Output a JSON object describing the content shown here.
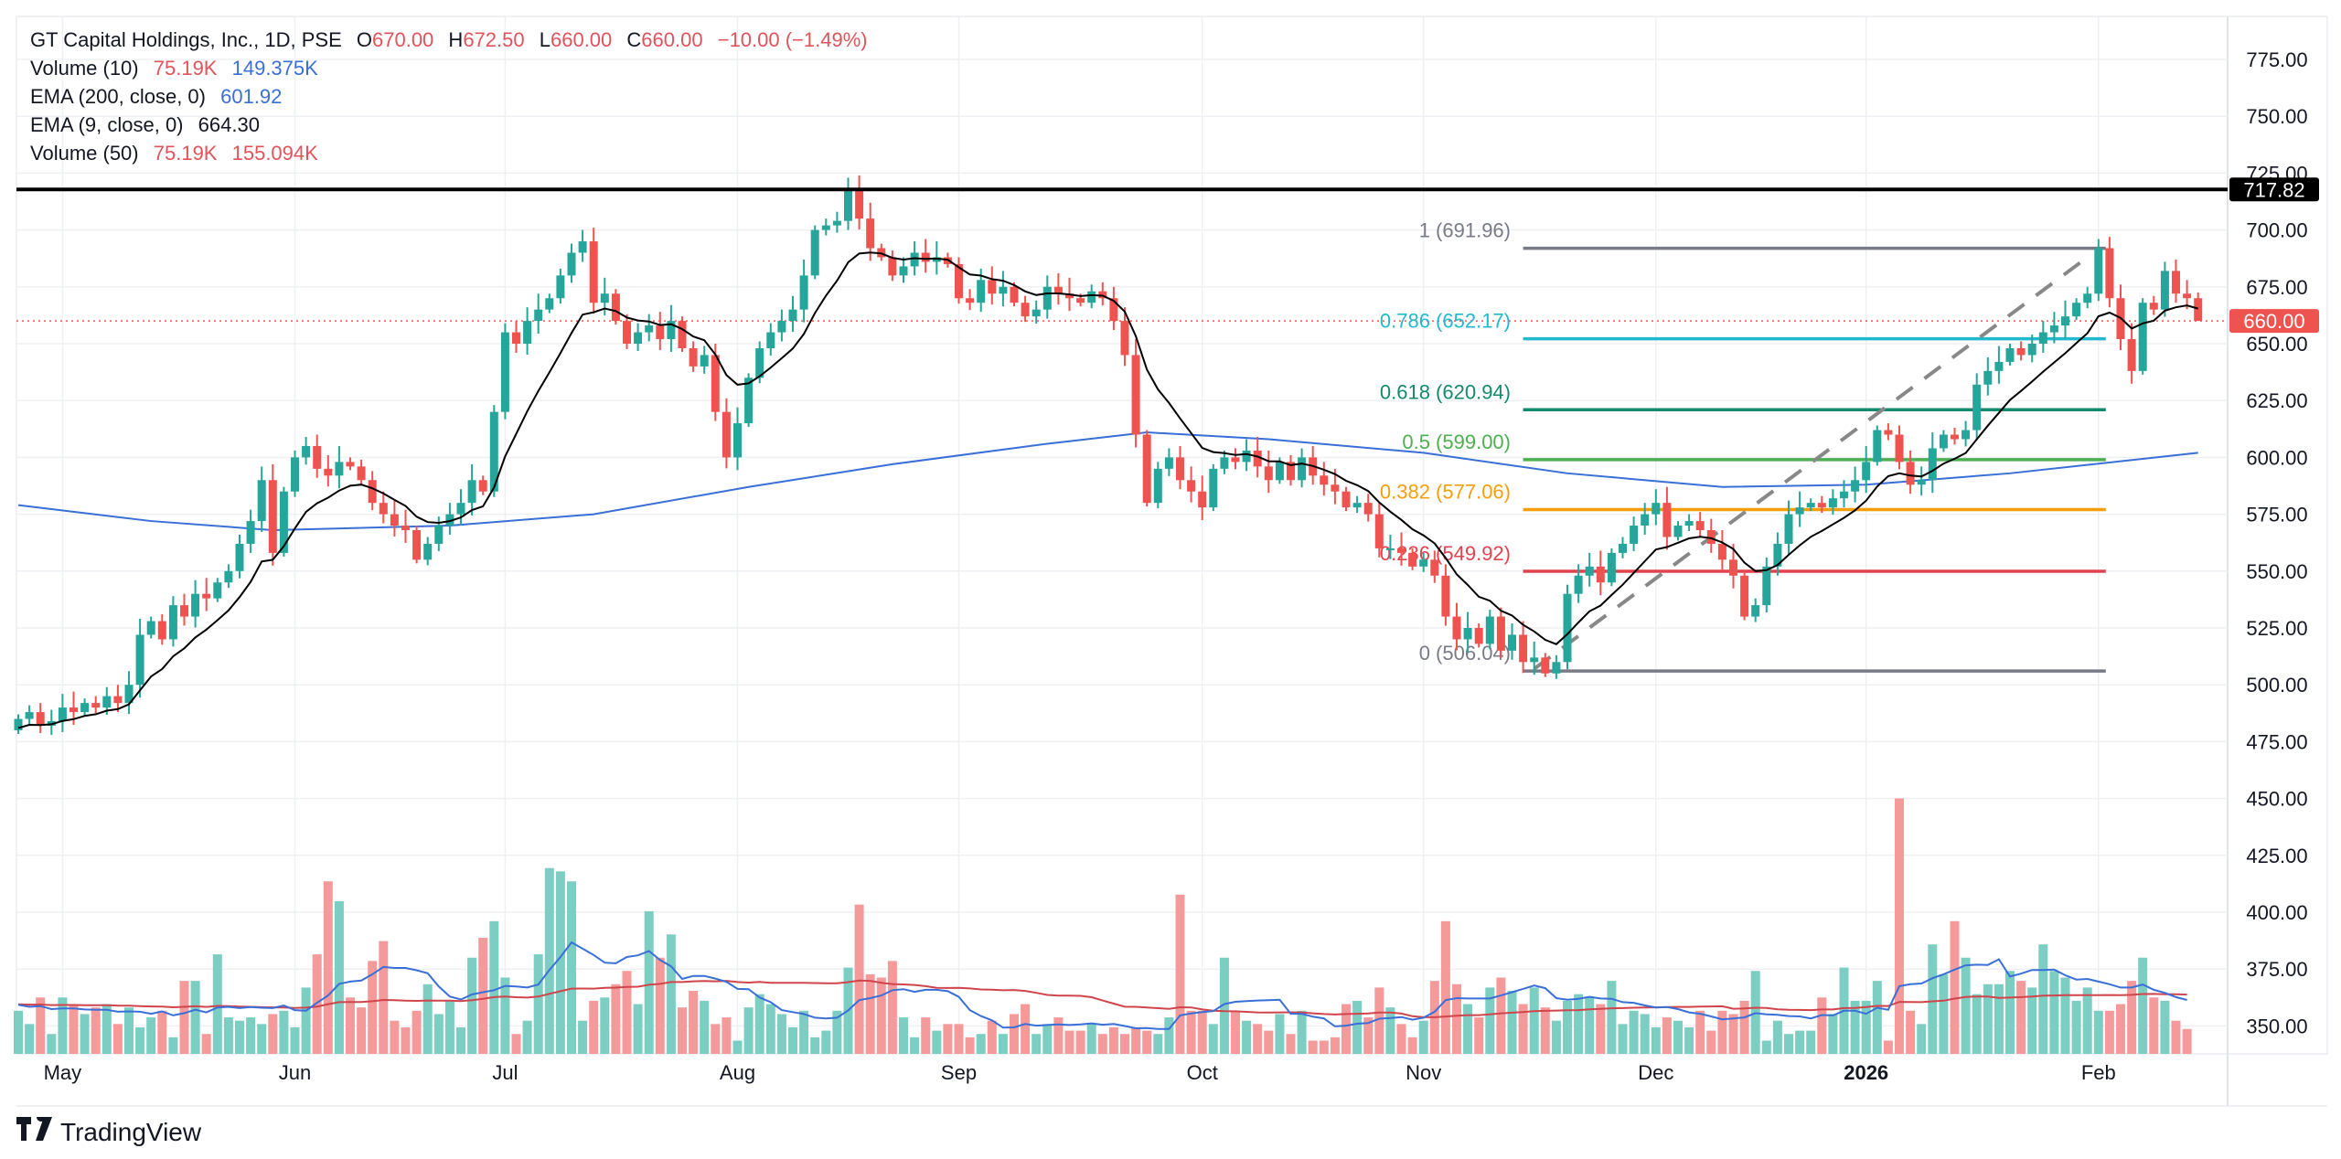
{
  "legend": {
    "title": "GT Capital Holdings, Inc., 1D, PSE",
    "o_label": "O",
    "o": "670.00",
    "h_label": "H",
    "h": "672.50",
    "l_label": "L",
    "l": "660.00",
    "c_label": "C",
    "c": "660.00",
    "change": "−10.00 (−1.49%)",
    "vol10_label": "Volume (10)",
    "vol10_a": "75.19K",
    "vol10_b": "149.375K",
    "ema200_label": "EMA (200, close, 0)",
    "ema200": "601.92",
    "ema9_label": "EMA (9, close, 0)",
    "ema9": "664.30",
    "vol50_label": "Volume (50)",
    "vol50_a": "75.19K",
    "vol50_b": "155.094K"
  },
  "branding": {
    "name": "TradingView",
    "mark": "17"
  },
  "colors": {
    "up": "#26a69a",
    "down": "#ef5350",
    "vol_up": "#7ccdc2",
    "vol_down": "#f59a9a",
    "ema200": "#3a6fd8",
    "ema9": "#000000",
    "vol_ma10": "#3a6fd8",
    "vol_ma50": "#d0454c",
    "resistance": "#000000",
    "last_price": "#ef5350"
  },
  "chart_data": {
    "type": "candlestick",
    "title": "GT Capital Holdings, Inc., 1D, PSE",
    "ylim": [
      340,
      790
    ],
    "y_ticks": [
      350,
      375,
      400,
      425,
      450,
      475,
      500,
      525,
      550,
      575,
      600,
      625,
      650,
      675,
      700,
      725,
      750,
      775
    ],
    "y_tick_labels": [
      "350.00",
      "375.00",
      "400.00",
      "425.00",
      "450.00",
      "475.00",
      "500.00",
      "525.00",
      "550.00",
      "575.00",
      "600.00",
      "625.00",
      "650.00",
      "675.00",
      "700.00",
      "725.00",
      "750.00",
      "775.00"
    ],
    "x_labels": [
      {
        "label": "May",
        "bar": 4
      },
      {
        "label": "Jun",
        "bar": 25
      },
      {
        "label": "Jul",
        "bar": 44
      },
      {
        "label": "Aug",
        "bar": 65
      },
      {
        "label": "Sep",
        "bar": 85
      },
      {
        "label": "Oct",
        "bar": 107
      },
      {
        "label": "Nov",
        "bar": 127
      },
      {
        "label": "Dec",
        "bar": 148
      },
      {
        "label": "2026",
        "bar": 167,
        "bold": true
      },
      {
        "label": "Feb",
        "bar": 188
      }
    ],
    "closes": [
      485,
      488,
      482,
      484,
      490,
      488,
      492,
      490,
      495,
      492,
      500,
      522,
      528,
      520,
      535,
      530,
      540,
      538,
      545,
      550,
      562,
      572,
      590,
      558,
      585,
      600,
      605,
      595,
      592,
      598,
      596,
      590,
      580,
      575,
      570,
      568,
      555,
      562,
      570,
      575,
      580,
      590,
      585,
      620,
      655,
      650,
      660,
      665,
      670,
      680,
      690,
      695,
      668,
      672,
      660,
      650,
      655,
      658,
      652,
      660,
      648,
      640,
      645,
      620,
      600,
      615,
      635,
      648,
      655,
      660,
      665,
      680,
      700,
      702,
      704,
      718,
      705,
      692,
      688,
      680,
      684,
      690,
      686,
      688,
      685,
      670,
      668,
      678,
      672,
      675,
      668,
      662,
      665,
      675,
      672,
      670,
      668,
      673,
      670,
      660,
      645,
      610,
      580,
      595,
      600,
      590,
      585,
      578,
      595,
      600,
      598,
      603,
      596,
      590,
      598,
      590,
      600,
      592,
      588,
      585,
      578,
      580,
      575,
      560,
      560,
      558,
      552,
      555,
      548,
      530,
      520,
      525,
      518,
      530,
      515,
      522,
      510,
      512,
      505,
      510,
      540,
      548,
      552,
      545,
      558,
      562,
      570,
      575,
      580,
      565,
      570,
      572,
      568,
      562,
      555,
      548,
      530,
      535,
      552,
      562,
      575,
      578,
      580,
      578,
      582,
      585,
      590,
      598,
      612,
      610,
      598,
      588,
      590,
      604,
      610,
      608,
      612,
      632,
      638,
      642,
      648,
      645,
      650,
      655,
      658,
      662,
      668,
      672,
      692,
      670,
      652,
      638,
      668,
      665,
      682,
      672,
      670,
      660
    ],
    "first_open": 480,
    "last_bar": {
      "open": 670,
      "high": 672.5,
      "low": 660,
      "close": 660
    },
    "volumes_k": [
      130,
      90,
      170,
      60,
      170,
      150,
      120,
      140,
      150,
      90,
      140,
      80,
      110,
      130,
      50,
      220,
      220,
      60,
      300,
      110,
      100,
      110,
      90,
      120,
      130,
      80,
      200,
      300,
      520,
      460,
      170,
      140,
      280,
      340,
      100,
      80,
      130,
      210,
      120,
      160,
      80,
      290,
      350,
      400,
      230,
      60,
      100,
      300,
      560,
      550,
      520,
      100,
      160,
      170,
      210,
      250,
      150,
      430,
      290,
      360,
      140,
      190,
      160,
      90,
      110,
      40,
      140,
      180,
      150,
      120,
      80,
      130,
      50,
      70,
      130,
      260,
      450,
      240,
      230,
      280,
      110,
      50,
      110,
      70,
      90,
      90,
      50,
      60,
      100,
      60,
      120,
      150,
      60,
      90,
      110,
      70,
      70,
      90,
      60,
      80,
      60,
      80,
      70,
      60,
      110,
      480,
      130,
      130,
      90,
      290,
      130,
      100,
      90,
      70,
      120,
      60,
      130,
      40,
      40,
      50,
      150,
      160,
      110,
      200,
      140,
      90,
      50,
      100,
      220,
      400,
      210,
      150,
      110,
      200,
      230,
      190,
      150,
      200,
      140,
      100,
      160,
      180,
      170,
      150,
      220,
      90,
      130,
      120,
      80,
      110,
      100,
      80,
      130,
      70,
      130,
      120,
      160,
      250,
      40,
      100,
      60,
      70,
      70,
      170,
      120,
      260,
      160,
      160,
      220,
      40,
      770,
      130,
      90,
      330,
      240,
      400,
      290,
      180,
      210,
      210,
      250,
      220,
      200,
      330,
      250,
      230,
      160,
      200,
      130,
      130,
      150,
      220,
      290,
      170,
      160,
      100,
      75.19
    ],
    "ema200_points": [
      [
        0,
        579
      ],
      [
        12,
        572
      ],
      [
        23,
        568
      ],
      [
        39,
        570
      ],
      [
        52,
        575
      ],
      [
        66,
        587
      ],
      [
        79,
        597
      ],
      [
        93,
        606
      ],
      [
        102,
        611
      ],
      [
        113,
        608
      ],
      [
        127,
        602
      ],
      [
        140,
        593
      ],
      [
        154,
        587
      ],
      [
        167,
        588
      ],
      [
        180,
        593
      ],
      [
        197,
        602
      ]
    ],
    "resistance": {
      "value": 717.82,
      "label": "717.82"
    },
    "last_price": {
      "value": 660.0,
      "label": "660.00"
    },
    "fibonacci": {
      "start_bar": 136,
      "end_bar": 188,
      "levels": [
        {
          "ratio": "1",
          "value": 691.96,
          "label": "1 (691.96)",
          "color": "#787b86"
        },
        {
          "ratio": "0.786",
          "value": 652.17,
          "label": "0.786 (652.17)",
          "color": "#22b8cf"
        },
        {
          "ratio": "0.618",
          "value": 620.94,
          "label": "0.618 (620.94)",
          "color": "#138a6e"
        },
        {
          "ratio": "0.5",
          "value": 599.0,
          "label": "0.5 (599.00)",
          "color": "#4caf50"
        },
        {
          "ratio": "0.382",
          "value": 577.06,
          "label": "0.382 (577.06)",
          "color": "#f59e0b"
        },
        {
          "ratio": "0.236",
          "value": 549.92,
          "label": "0.236 (549.92)",
          "color": "#e0434f"
        },
        {
          "ratio": "0",
          "value": 506.04,
          "label": "0 (506.04)",
          "color": "#787b86"
        }
      ],
      "trend_line": {
        "from": [
          137,
          507
        ],
        "to": [
          187,
          688
        ]
      }
    }
  }
}
